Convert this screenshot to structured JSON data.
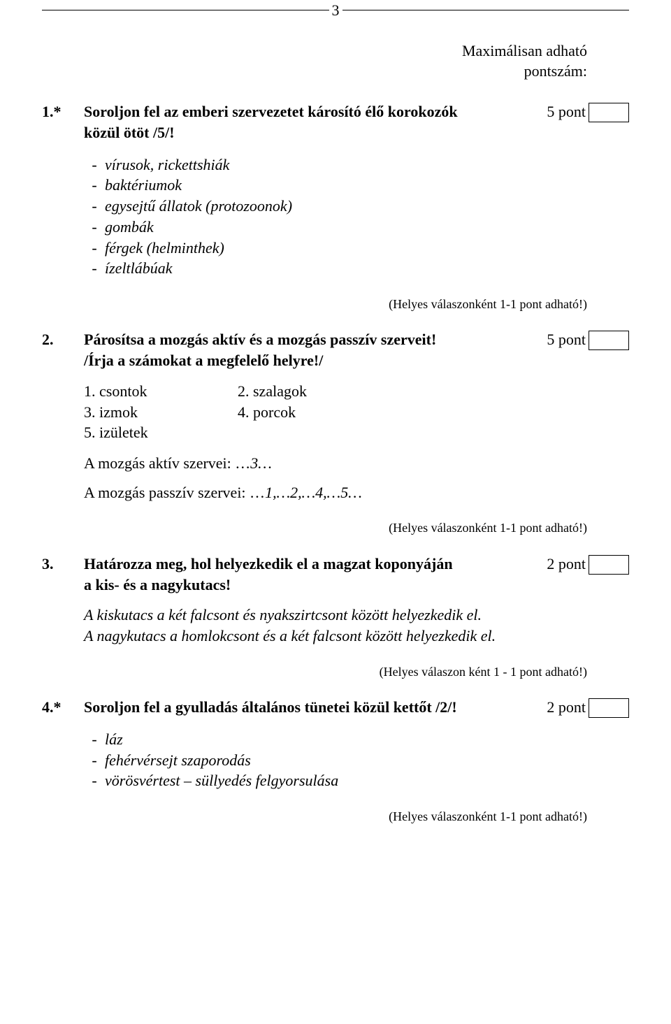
{
  "page_number": "3",
  "header": {
    "line1": "Maximálisan adható",
    "line2": "pontszám:"
  },
  "q1": {
    "num": "1.*",
    "text_l1": "Soroljon fel az emberi szervezetet károsító élő korokozók",
    "text_l2": "közül ötöt /5/!",
    "points": "5 pont",
    "answers": [
      "vírusok, rickettshiák",
      "baktériumok",
      "egysejtű állatok (protozoonok)",
      "gombák",
      "férgek (helminthek)",
      "ízeltlábúak"
    ],
    "helyes": "(Helyes válaszonként 1-1 pont adható!)"
  },
  "q2": {
    "num": "2.",
    "text_l1": "Párosítsa a mozgás aktív és a mozgás passzív szerveit!",
    "text_l2": "/Írja a számokat a megfelelő helyre!/",
    "points": "5 pont",
    "list": {
      "r1c1": "1. csontok",
      "r1c2": "2. szalagok",
      "r2c1": "3. izmok",
      "r2c2": "4. porcok",
      "r3c1": "5. izületek"
    },
    "aktiv_label": "A mozgás aktív szervei: …",
    "aktiv_ans": "3…",
    "passziv_label": "A mozgás passzív szervei: …",
    "passziv_ans": "1,…2,…4,…5…",
    "helyes": "(Helyes válaszonként 1-1 pont adható!)"
  },
  "q3": {
    "num": "3.",
    "text_l1": "Határozza meg, hol helyezkedik el a magzat koponyáján",
    "text_l2": "a kis- és a nagykutacs!",
    "points": "2 pont",
    "ans_l1": "A kiskutacs a két falcsont és nyakszirtcsont között helyezkedik el.",
    "ans_l2": "A nagykutacs a homlokcsont és a két falcsont között helyezkedik el.",
    "helyes": "(Helyes válaszon ként 1 - 1 pont adható!)"
  },
  "q4": {
    "num": "4.*",
    "text": "Soroljon fel a gyulladás általános tünetei közül kettőt /2/!",
    "points": "2 pont",
    "answers": [
      "láz",
      "fehérvérsejt  szaporodás",
      "vörösvértest – süllyedés felgyorsulása"
    ],
    "helyes": "(Helyes válaszonként 1-1 pont adható!)"
  }
}
